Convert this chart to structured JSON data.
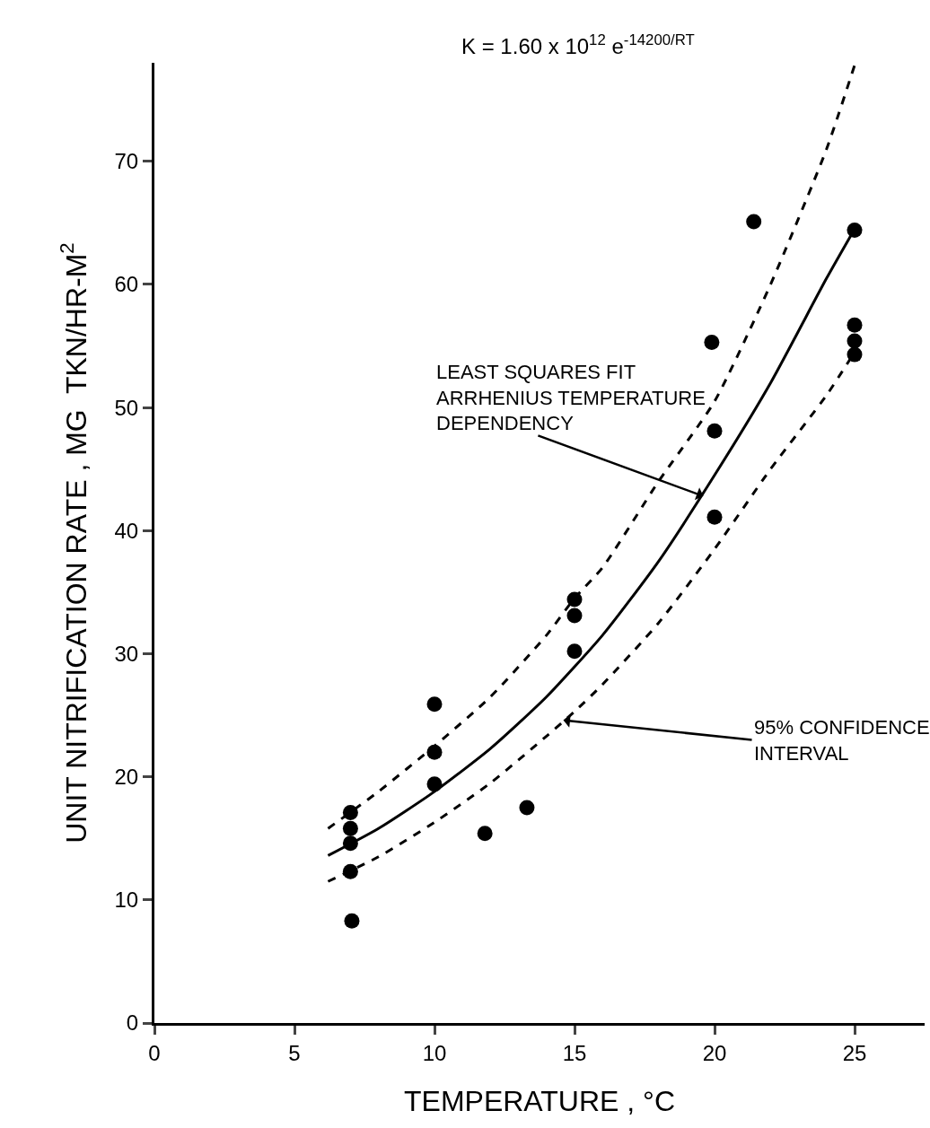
{
  "chart_data": {
    "type": "scatter",
    "xlabel": "TEMPERATURE , °C",
    "ylabel": "UNIT NITRIFICATION RATE , MG  TKN/HR-M$^{2}$",
    "xlim": [
      0,
      27.5
    ],
    "xticks": [
      0,
      5,
      10,
      15,
      20,
      25
    ],
    "ylim": [
      0,
      78
    ],
    "yticks": [
      0,
      10,
      20,
      30,
      40,
      50,
      60,
      70
    ],
    "grid": false,
    "series": [
      {
        "marker": "circle",
        "color": "#000000",
        "x": [
          7,
          7,
          7,
          7,
          7.05,
          10,
          10,
          10,
          11.8,
          13.3,
          15,
          15,
          15,
          19.9,
          20,
          20,
          21.4,
          25,
          25,
          25,
          25
        ],
        "values": [
          17.1,
          15.8,
          14.6,
          12.3,
          8.3,
          25.9,
          22.0,
          19.4,
          15.4,
          17.5,
          34.4,
          33.1,
          30.2,
          55.3,
          48.1,
          41.1,
          65.1,
          64.4,
          56.7,
          55.4,
          54.3
        ]
      },
      {
        "type": "line",
        "color": "#000000",
        "line_style": "solid",
        "x": [
          6.2,
          8,
          10,
          12,
          14,
          16,
          18,
          20,
          22,
          24,
          25
        ],
        "values": [
          13.6,
          15.8,
          18.8,
          22.3,
          26.5,
          31.5,
          37.5,
          44.5,
          52,
          60.5,
          64.5
        ]
      },
      {
        "type": "line",
        "color": "#000000",
        "line_style": "dashed",
        "x": [
          6.2,
          8,
          10,
          12,
          14,
          15,
          16,
          18,
          20,
          22,
          24,
          25
        ],
        "values": [
          15.8,
          18.8,
          22.5,
          26.5,
          31.5,
          34.5,
          37,
          44,
          50.5,
          60,
          71,
          77.8
        ]
      },
      {
        "type": "line",
        "color": "#000000",
        "line_style": "dashed",
        "x": [
          6.2,
          8,
          10,
          12,
          14,
          15,
          16,
          18,
          20,
          22,
          24,
          25
        ],
        "values": [
          11.5,
          13.5,
          16.3,
          19.5,
          23.3,
          25.3,
          27.5,
          32.5,
          38.5,
          45,
          51,
          54.5
        ]
      }
    ],
    "annotations": [
      "K = 1.60 x 10$^{12}$ e$^{-14200/RT}$",
      {
        "text": "LEAST SQUARES FIT\nARRHENIUS TEMPERATURE\nDEPENDENCY",
        "x": 19.6,
        "y": 42.8
      },
      {
        "text": "95% CONFIDENCE\nINTERVAL",
        "x": 14.6,
        "y": 24.6
      }
    ]
  }
}
